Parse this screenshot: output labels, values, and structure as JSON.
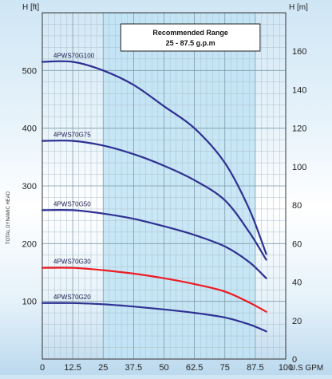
{
  "chart_data": {
    "type": "line",
    "xlabel": "U.S GPM",
    "ylabel_left": "H [ft]",
    "ylabel_right": "H [m]",
    "ylabel_side": "TOTAL DYNAMIC HEAD",
    "xlim": [
      0,
      100
    ],
    "ylim_ft": [
      0,
      600
    ],
    "ylim_m": [
      0,
      180
    ],
    "x_ticks": [
      "0",
      "12.5",
      "25",
      "37.5",
      "50",
      "62.5",
      "75",
      "87.5",
      "100"
    ],
    "y_ticks_ft": [
      "100",
      "200",
      "300",
      "400",
      "500"
    ],
    "y_ticks_m": [
      "0",
      "20",
      "40",
      "60",
      "80",
      "100",
      "120",
      "140",
      "160"
    ],
    "recommended_range": {
      "title": "Recommended Range",
      "subtitle": "25 - 87.5 g.p.m",
      "from": 25,
      "to": 87.5
    },
    "grid": true,
    "series": [
      {
        "name": "4PWS70G100",
        "color": "#2e3192",
        "x": [
          0,
          12.5,
          25,
          37.5,
          50,
          62.5,
          75,
          85,
          92
        ],
        "y": [
          515,
          515,
          500,
          475,
          438,
          400,
          340,
          260,
          182
        ]
      },
      {
        "name": "4PWS70G75",
        "color": "#2e3192",
        "x": [
          0,
          12.5,
          25,
          37.5,
          50,
          62.5,
          75,
          85,
          92
        ],
        "y": [
          378,
          378,
          370,
          355,
          335,
          310,
          275,
          220,
          172
        ]
      },
      {
        "name": "4PWS70G50",
        "color": "#2e3192",
        "x": [
          0,
          12.5,
          25,
          37.5,
          50,
          62.5,
          75,
          85,
          92
        ],
        "y": [
          258,
          258,
          252,
          243,
          230,
          215,
          195,
          168,
          140
        ]
      },
      {
        "name": "4PWS70G30",
        "color": "#ed1c24",
        "x": [
          0,
          12.5,
          25,
          37.5,
          50,
          62.5,
          75,
          85,
          92
        ],
        "y": [
          158,
          158,
          154,
          148,
          140,
          130,
          117,
          98,
          82
        ]
      },
      {
        "name": "4PWS70G20",
        "color": "#2e3192",
        "x": [
          0,
          12.5,
          25,
          37.5,
          50,
          62.5,
          75,
          85,
          92
        ],
        "y": [
          97,
          97,
          95,
          91,
          86,
          80,
          72,
          60,
          48
        ]
      }
    ]
  }
}
